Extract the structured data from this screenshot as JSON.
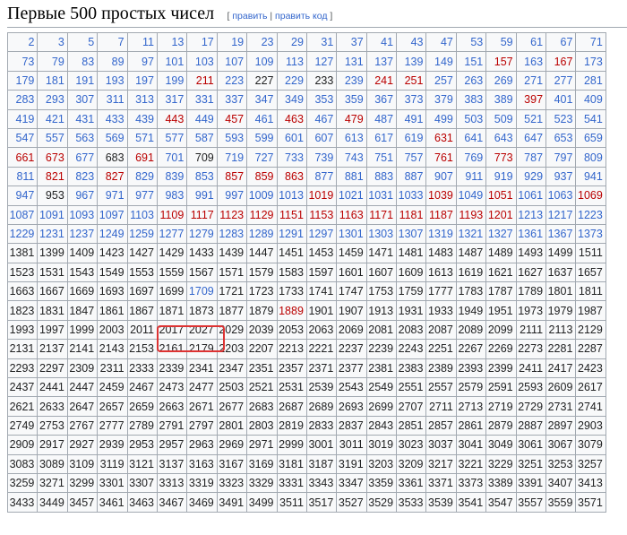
{
  "heading": {
    "title": "Первые 500 простых чисел",
    "edit": "править",
    "edit_code": "править код",
    "open": "[",
    "sep": "|",
    "close": "]"
  },
  "colors": {
    "blue": "#3366cc",
    "red": "#ba0000",
    "black": "#202122",
    "highlight": "#dd3333"
  },
  "blue_default_rows": 11,
  "red_links": [
    157,
    167,
    211,
    241,
    251,
    397,
    443,
    457,
    463,
    479,
    631,
    661,
    673,
    691,
    761,
    773,
    821,
    827,
    857,
    859,
    863,
    1019,
    1039,
    1051,
    1069,
    1109,
    1117,
    1123,
    1129,
    1151,
    1153,
    1163,
    1171,
    1181,
    1187,
    1193,
    1201,
    1889
  ],
  "plain_in_blue_rows": [
    227,
    233,
    683,
    709,
    953
  ],
  "blue_in_plain_rows": [
    1709
  ],
  "highlighted": [
    2017,
    2027
  ],
  "rows": [
    [
      2,
      3,
      5,
      7,
      11,
      13,
      17,
      19,
      23,
      29,
      31,
      37,
      41,
      43,
      47,
      53,
      59,
      61,
      67,
      71
    ],
    [
      73,
      79,
      83,
      89,
      97,
      101,
      103,
      107,
      109,
      113,
      127,
      131,
      137,
      139,
      149,
      151,
      157,
      163,
      167,
      173
    ],
    [
      179,
      181,
      191,
      193,
      197,
      199,
      211,
      223,
      227,
      229,
      233,
      239,
      241,
      251,
      257,
      263,
      269,
      271,
      277,
      281
    ],
    [
      283,
      293,
      307,
      311,
      313,
      317,
      331,
      337,
      347,
      349,
      353,
      359,
      367,
      373,
      379,
      383,
      389,
      397,
      401,
      409
    ],
    [
      419,
      421,
      431,
      433,
      439,
      443,
      449,
      457,
      461,
      463,
      467,
      479,
      487,
      491,
      499,
      503,
      509,
      521,
      523,
      541
    ],
    [
      547,
      557,
      563,
      569,
      571,
      577,
      587,
      593,
      599,
      601,
      607,
      613,
      617,
      619,
      631,
      641,
      643,
      647,
      653,
      659
    ],
    [
      661,
      673,
      677,
      683,
      691,
      701,
      709,
      719,
      727,
      733,
      739,
      743,
      751,
      757,
      761,
      769,
      773,
      787,
      797,
      809
    ],
    [
      811,
      821,
      823,
      827,
      829,
      839,
      853,
      857,
      859,
      863,
      877,
      881,
      883,
      887,
      907,
      911,
      919,
      929,
      937,
      941
    ],
    [
      947,
      953,
      967,
      971,
      977,
      983,
      991,
      997,
      1009,
      1013,
      1019,
      1021,
      1031,
      1033,
      1039,
      1049,
      1051,
      1061,
      1063,
      1069
    ],
    [
      1087,
      1091,
      1093,
      1097,
      1103,
      1109,
      1117,
      1123,
      1129,
      1151,
      1153,
      1163,
      1171,
      1181,
      1187,
      1193,
      1201,
      1213,
      1217,
      1223
    ],
    [
      1229,
      1231,
      1237,
      1249,
      1259,
      1277,
      1279,
      1283,
      1289,
      1291,
      1297,
      1301,
      1303,
      1307,
      1319,
      1321,
      1327,
      1361,
      1367,
      1373
    ],
    [
      1381,
      1399,
      1409,
      1423,
      1427,
      1429,
      1433,
      1439,
      1447,
      1451,
      1453,
      1459,
      1471,
      1481,
      1483,
      1487,
      1489,
      1493,
      1499,
      1511
    ],
    [
      1523,
      1531,
      1543,
      1549,
      1553,
      1559,
      1567,
      1571,
      1579,
      1583,
      1597,
      1601,
      1607,
      1609,
      1613,
      1619,
      1621,
      1627,
      1637,
      1657
    ],
    [
      1663,
      1667,
      1669,
      1693,
      1697,
      1699,
      1709,
      1721,
      1723,
      1733,
      1741,
      1747,
      1753,
      1759,
      1777,
      1783,
      1787,
      1789,
      1801,
      1811
    ],
    [
      1823,
      1831,
      1847,
      1861,
      1867,
      1871,
      1873,
      1877,
      1879,
      1889,
      1901,
      1907,
      1913,
      1931,
      1933,
      1949,
      1951,
      1973,
      1979,
      1987
    ],
    [
      1993,
      1997,
      1999,
      2003,
      2011,
      2017,
      2027,
      2029,
      2039,
      2053,
      2063,
      2069,
      2081,
      2083,
      2087,
      2089,
      2099,
      2111,
      2113,
      2129
    ],
    [
      2131,
      2137,
      2141,
      2143,
      2153,
      2161,
      2179,
      2203,
      2207,
      2213,
      2221,
      2237,
      2239,
      2243,
      2251,
      2267,
      2269,
      2273,
      2281,
      2287
    ],
    [
      2293,
      2297,
      2309,
      2311,
      2333,
      2339,
      2341,
      2347,
      2351,
      2357,
      2371,
      2377,
      2381,
      2383,
      2389,
      2393,
      2399,
      2411,
      2417,
      2423
    ],
    [
      2437,
      2441,
      2447,
      2459,
      2467,
      2473,
      2477,
      2503,
      2521,
      2531,
      2539,
      2543,
      2549,
      2551,
      2557,
      2579,
      2591,
      2593,
      2609,
      2617
    ],
    [
      2621,
      2633,
      2647,
      2657,
      2659,
      2663,
      2671,
      2677,
      2683,
      2687,
      2689,
      2693,
      2699,
      2707,
      2711,
      2713,
      2719,
      2729,
      2731,
      2741
    ],
    [
      2749,
      2753,
      2767,
      2777,
      2789,
      2791,
      2797,
      2801,
      2803,
      2819,
      2833,
      2837,
      2843,
      2851,
      2857,
      2861,
      2879,
      2887,
      2897,
      2903
    ],
    [
      2909,
      2917,
      2927,
      2939,
      2953,
      2957,
      2963,
      2969,
      2971,
      2999,
      3001,
      3011,
      3019,
      3023,
      3037,
      3041,
      3049,
      3061,
      3067,
      3079
    ],
    [
      3083,
      3089,
      3109,
      3119,
      3121,
      3137,
      3163,
      3167,
      3169,
      3181,
      3187,
      3191,
      3203,
      3209,
      3217,
      3221,
      3229,
      3251,
      3253,
      3257
    ],
    [
      3259,
      3271,
      3299,
      3301,
      3307,
      3313,
      3319,
      3323,
      3329,
      3331,
      3343,
      3347,
      3359,
      3361,
      3371,
      3373,
      3389,
      3391,
      3407,
      3413
    ],
    [
      3433,
      3449,
      3457,
      3461,
      3463,
      3467,
      3469,
      3491,
      3499,
      3511,
      3517,
      3527,
      3529,
      3533,
      3539,
      3541,
      3547,
      3557,
      3559,
      3571
    ]
  ]
}
